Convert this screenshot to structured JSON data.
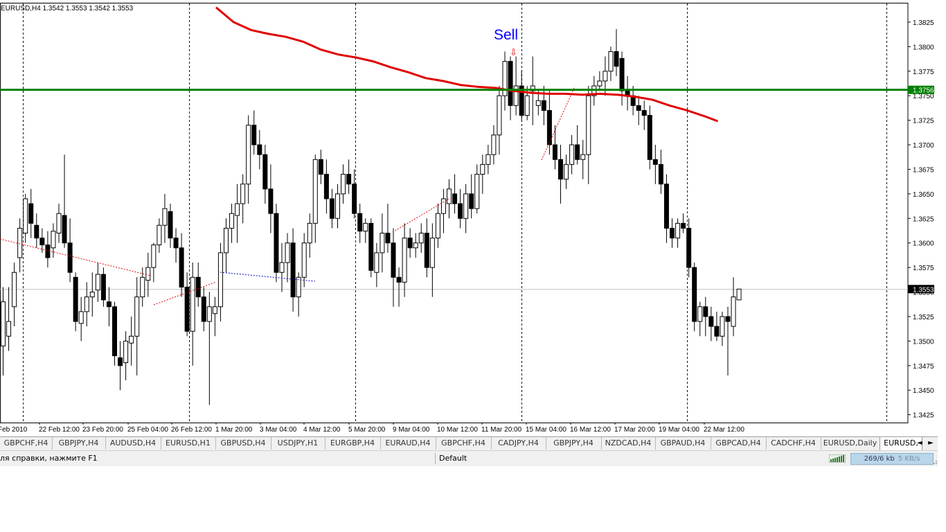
{
  "chart_data": {
    "type": "candlestick",
    "symbol_header": "EURUSD,H4  1.3542 1.3553 1.3542 1.3553",
    "y_ticks": [
      "1.3825",
      "1.3800",
      "1.3775",
      "1.3750",
      "1.3725",
      "1.3700",
      "1.3675",
      "1.3650",
      "1.3625",
      "1.3600",
      "1.3575",
      "1.3550",
      "1.3525",
      "1.3500",
      "1.3475",
      "1.3450",
      "1.3425"
    ],
    "ylim": [
      1.3417,
      1.3844
    ],
    "x_labels": [
      "Feb 2010",
      "22 Feb 12:00",
      "23 Feb 20:00",
      "25 Feb 04:00",
      "26 Feb 12:00",
      "1 Mar 20:00",
      "3 Mar 04:00",
      "4 Mar 12:00",
      "5 Mar 20:00",
      "9 Mar 04:00",
      "10 Mar 12:00",
      "11 Mar 20:00",
      "15 Mar 04:00",
      "16 Mar 12:00",
      "17 Mar 20:00",
      "19 Mar 04:00",
      "22 Mar 12:00"
    ],
    "hline_level": 1.3756,
    "hline_label": "1.3756",
    "current_price": 1.3553,
    "current_price_label": "1.3553",
    "annotation_text": "Sell",
    "arrow_glyph": "⇩",
    "colors": {
      "hline": "#008000",
      "ma": "#e00000",
      "bull": "#ffffff",
      "bear": "#000000",
      "sell_text": "#0000ff"
    },
    "candles": [
      [
        1.3495,
        1.3555,
        1.3465,
        1.354
      ],
      [
        1.3505,
        1.3555,
        1.349,
        1.352
      ],
      [
        1.3535,
        1.358,
        1.3515,
        1.357
      ],
      [
        1.3585,
        1.3625,
        1.357,
        1.3615
      ],
      [
        1.361,
        1.365,
        1.36,
        1.3645
      ],
      [
        1.364,
        1.3655,
        1.3605,
        1.362
      ],
      [
        1.3618,
        1.363,
        1.3595,
        1.3605
      ],
      [
        1.3605,
        1.3615,
        1.359,
        1.3598
      ],
      [
        1.3598,
        1.3612,
        1.3575,
        1.3585
      ],
      [
        1.3595,
        1.362,
        1.3585,
        1.3612
      ],
      [
        1.361,
        1.364,
        1.36,
        1.363
      ],
      [
        1.3628,
        1.369,
        1.3595,
        1.36
      ],
      [
        1.36,
        1.3625,
        1.356,
        1.357
      ],
      [
        1.3565,
        1.357,
        1.351,
        1.352
      ],
      [
        1.3518,
        1.3545,
        1.35,
        1.353
      ],
      [
        1.353,
        1.356,
        1.3515,
        1.3545
      ],
      [
        1.3545,
        1.357,
        1.3525,
        1.355
      ],
      [
        1.3552,
        1.358,
        1.354,
        1.3568
      ],
      [
        1.3568,
        1.3575,
        1.3535,
        1.3542
      ],
      [
        1.354,
        1.3555,
        1.3515,
        1.3535
      ],
      [
        1.3535,
        1.354,
        1.3475,
        1.3485
      ],
      [
        1.3483,
        1.35,
        1.345,
        1.3475
      ],
      [
        1.3478,
        1.351,
        1.346,
        1.35
      ],
      [
        1.3498,
        1.3525,
        1.3475,
        1.3505
      ],
      [
        1.3505,
        1.3565,
        1.3465,
        1.3545
      ],
      [
        1.3545,
        1.3575,
        1.3535,
        1.3565
      ],
      [
        1.3562,
        1.359,
        1.3545,
        1.3575
      ],
      [
        1.3575,
        1.36,
        1.356,
        1.3598
      ],
      [
        1.3598,
        1.3625,
        1.359,
        1.3618
      ],
      [
        1.3618,
        1.365,
        1.36,
        1.3635
      ],
      [
        1.3632,
        1.364,
        1.3595,
        1.3605
      ],
      [
        1.3605,
        1.3615,
        1.358,
        1.3595
      ],
      [
        1.3595,
        1.361,
        1.3545,
        1.3555
      ],
      [
        1.3555,
        1.357,
        1.3505,
        1.351
      ],
      [
        1.351,
        1.358,
        1.3475,
        1.3565
      ],
      [
        1.3565,
        1.358,
        1.3535,
        1.3545
      ],
      [
        1.3545,
        1.3555,
        1.351,
        1.352
      ],
      [
        1.352,
        1.355,
        1.3435,
        1.3535
      ],
      [
        1.3528,
        1.3545,
        1.3505,
        1.3535
      ],
      [
        1.3535,
        1.36,
        1.352,
        1.359
      ],
      [
        1.359,
        1.3625,
        1.357,
        1.3615
      ],
      [
        1.3615,
        1.364,
        1.36,
        1.363
      ],
      [
        1.3628,
        1.366,
        1.36,
        1.364
      ],
      [
        1.364,
        1.367,
        1.362,
        1.366
      ],
      [
        1.366,
        1.373,
        1.364,
        1.372
      ],
      [
        1.372,
        1.3735,
        1.369,
        1.37
      ],
      [
        1.37,
        1.3715,
        1.3675,
        1.369
      ],
      [
        1.369,
        1.37,
        1.364,
        1.3655
      ],
      [
        1.3655,
        1.368,
        1.361,
        1.363
      ],
      [
        1.363,
        1.364,
        1.356,
        1.357
      ],
      [
        1.357,
        1.36,
        1.355,
        1.358
      ],
      [
        1.358,
        1.361,
        1.356,
        1.36
      ],
      [
        1.36,
        1.3615,
        1.353,
        1.3545
      ],
      [
        1.3545,
        1.357,
        1.3525,
        1.3565
      ],
      [
        1.3565,
        1.361,
        1.3555,
        1.36
      ],
      [
        1.36,
        1.363,
        1.3585,
        1.362
      ],
      [
        1.362,
        1.369,
        1.36,
        1.3685
      ],
      [
        1.3685,
        1.3695,
        1.366,
        1.367
      ],
      [
        1.367,
        1.3685,
        1.363,
        1.3645
      ],
      [
        1.3645,
        1.3655,
        1.3615,
        1.3625
      ],
      [
        1.3625,
        1.366,
        1.3615,
        1.365
      ],
      [
        1.365,
        1.368,
        1.364,
        1.367
      ],
      [
        1.367,
        1.3685,
        1.365,
        1.366
      ],
      [
        1.366,
        1.3675,
        1.3625,
        1.363
      ],
      [
        1.363,
        1.364,
        1.36,
        1.3612
      ],
      [
        1.3612,
        1.3625,
        1.36,
        1.362
      ],
      [
        1.362,
        1.3625,
        1.3565,
        1.3572
      ],
      [
        1.357,
        1.36,
        1.3555,
        1.359
      ],
      [
        1.359,
        1.363,
        1.357,
        1.361
      ],
      [
        1.361,
        1.364,
        1.359,
        1.36
      ],
      [
        1.36,
        1.3615,
        1.3535,
        1.3565
      ],
      [
        1.3565,
        1.3575,
        1.3535,
        1.356
      ],
      [
        1.356,
        1.362,
        1.3545,
        1.3605
      ],
      [
        1.3605,
        1.3615,
        1.3585,
        1.3595
      ],
      [
        1.3595,
        1.361,
        1.3585,
        1.36
      ],
      [
        1.36,
        1.362,
        1.359,
        1.361
      ],
      [
        1.361,
        1.3625,
        1.3565,
        1.3575
      ],
      [
        1.3575,
        1.362,
        1.3545,
        1.3605
      ],
      [
        1.3605,
        1.364,
        1.3595,
        1.363
      ],
      [
        1.363,
        1.3655,
        1.361,
        1.3645
      ],
      [
        1.364,
        1.3665,
        1.3625,
        1.3655
      ],
      [
        1.365,
        1.367,
        1.363,
        1.364
      ],
      [
        1.364,
        1.3655,
        1.3615,
        1.3625
      ],
      [
        1.3625,
        1.366,
        1.361,
        1.365
      ],
      [
        1.365,
        1.367,
        1.3625,
        1.3635
      ],
      [
        1.3635,
        1.368,
        1.363,
        1.367
      ],
      [
        1.367,
        1.369,
        1.365,
        1.368
      ],
      [
        1.368,
        1.37,
        1.367,
        1.369
      ],
      [
        1.369,
        1.372,
        1.368,
        1.371
      ],
      [
        1.371,
        1.376,
        1.369,
        1.375
      ],
      [
        1.375,
        1.3795,
        1.3735,
        1.3785
      ],
      [
        1.3785,
        1.379,
        1.3725,
        1.374
      ],
      [
        1.374,
        1.379,
        1.373,
        1.376
      ],
      [
        1.376,
        1.3775,
        1.3725,
        1.373
      ],
      [
        1.373,
        1.376,
        1.3725,
        1.375
      ],
      [
        1.3755,
        1.379,
        1.372,
        1.376
      ],
      [
        1.374,
        1.3755,
        1.373,
        1.3745
      ],
      [
        1.3745,
        1.376,
        1.372,
        1.3735
      ],
      [
        1.3735,
        1.3755,
        1.369,
        1.37
      ],
      [
        1.37,
        1.372,
        1.3675,
        1.3685
      ],
      [
        1.3685,
        1.37,
        1.364,
        1.3665
      ],
      [
        1.3665,
        1.369,
        1.3655,
        1.368
      ],
      [
        1.368,
        1.371,
        1.367,
        1.37
      ],
      [
        1.37,
        1.372,
        1.368,
        1.3685
      ],
      [
        1.3685,
        1.3705,
        1.3665,
        1.369
      ],
      [
        1.369,
        1.376,
        1.366,
        1.375
      ],
      [
        1.375,
        1.377,
        1.374,
        1.376
      ],
      [
        1.376,
        1.3775,
        1.3755,
        1.3765
      ],
      [
        1.3765,
        1.379,
        1.375,
        1.3775
      ],
      [
        1.3775,
        1.38,
        1.3765,
        1.3795
      ],
      [
        1.3795,
        1.3818,
        1.377,
        1.378
      ],
      [
        1.3788,
        1.3795,
        1.374,
        1.3755
      ],
      [
        1.3755,
        1.377,
        1.3735,
        1.375
      ],
      [
        1.375,
        1.376,
        1.373,
        1.374
      ],
      [
        1.374,
        1.375,
        1.372,
        1.3735
      ],
      [
        1.3735,
        1.3745,
        1.3715,
        1.373
      ],
      [
        1.373,
        1.374,
        1.3675,
        1.3685
      ],
      [
        1.3685,
        1.37,
        1.366,
        1.368
      ],
      [
        1.368,
        1.3695,
        1.365,
        1.366
      ],
      [
        1.366,
        1.367,
        1.36,
        1.3615
      ],
      [
        1.3615,
        1.3625,
        1.3595,
        1.3605
      ],
      [
        1.3605,
        1.3625,
        1.3595,
        1.362
      ],
      [
        1.362,
        1.363,
        1.361,
        1.3615
      ],
      [
        1.3615,
        1.3625,
        1.3565,
        1.3575
      ],
      [
        1.3575,
        1.358,
        1.351,
        1.352
      ],
      [
        1.352,
        1.354,
        1.3505,
        1.3535
      ],
      [
        1.3535,
        1.3545,
        1.3505,
        1.3525
      ],
      [
        1.3525,
        1.3535,
        1.35,
        1.3515
      ],
      [
        1.3515,
        1.353,
        1.35,
        1.3505
      ],
      [
        1.3505,
        1.353,
        1.3495,
        1.3525
      ],
      [
        1.3525,
        1.3535,
        1.3465,
        1.352
      ],
      [
        1.3515,
        1.3565,
        1.3505,
        1.3545
      ],
      [
        1.3542,
        1.3553,
        1.3542,
        1.3553
      ]
    ],
    "ma_points": [
      [
        1.384,
        -999
      ],
      [
        1.384,
        0
      ],
      [
        1.3825,
        8
      ],
      [
        1.3817,
        16
      ],
      [
        1.3813,
        24
      ],
      [
        1.381,
        32
      ],
      [
        1.3805,
        40
      ],
      [
        1.3797,
        48
      ],
      [
        1.3792,
        56
      ],
      [
        1.3789,
        64
      ],
      [
        1.3785,
        72
      ],
      [
        1.3779,
        80
      ],
      [
        1.3774,
        88
      ],
      [
        1.3768,
        96
      ],
      [
        1.3765,
        104
      ],
      [
        1.3761,
        112
      ],
      [
        1.3759,
        120
      ],
      [
        1.3758,
        128
      ],
      [
        1.3755,
        136
      ],
      [
        1.3753,
        144
      ],
      [
        1.3752,
        152
      ],
      [
        1.3752,
        160
      ],
      [
        1.3751,
        168
      ],
      [
        1.3752,
        176
      ],
      [
        1.3751,
        184
      ],
      [
        1.3749,
        192
      ],
      [
        1.3746,
        200
      ],
      [
        1.374,
        208
      ],
      [
        1.3735,
        216
      ],
      [
        1.3729,
        224
      ],
      [
        1.3724,
        230
      ]
    ],
    "zigzag_red": [
      [
        1.36,
        -999
      ],
      [
        1.356,
        0
      ],
      [
        1.354,
        26
      ],
      [
        1.3565,
        40
      ],
      [
        1.361,
        60
      ],
      [
        1.3645,
        80
      ],
      [
        1.3682,
        100
      ],
      [
        1.376,
        115
      ]
    ],
    "zigzag_blue": [
      [
        1.357,
        37
      ],
      [
        1.356,
        52
      ]
    ]
  },
  "tabs": [
    "GBPCHF,H4",
    "GBPJPY,H4",
    "AUDUSD,H4",
    "EURUSD,H1",
    "GBPUSD,H4",
    "USDJPY,H1",
    "EURGBP,H4",
    "EURAUD,H4",
    "GBPCHF,H4",
    "CADJPY,H4",
    "GBPJPY,H4",
    "NZDCAD,H4",
    "GBPAUD,H4",
    "GBPCAD,H4",
    "CADCHF,H4",
    "EURUSD,Daily",
    "EURUSD,"
  ],
  "tab_nav": {
    "left": "◄",
    "right": "►"
  },
  "status": {
    "help_text": "ля справки, нажмите F1",
    "profile": "Default",
    "connection": "269/6 kb",
    "speed": "5 KB/s"
  }
}
